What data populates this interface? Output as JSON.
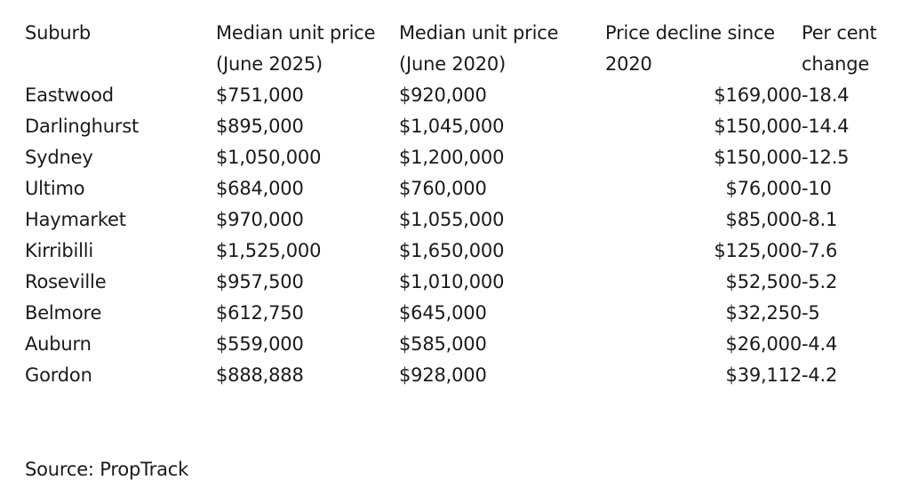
{
  "table": {
    "headers": {
      "suburb": "Suburb",
      "median_2025": "Median unit price (June 2025)",
      "median_2020": "Median unit price (June 2020)",
      "decline": "Price decline since 2020",
      "pct_change": "Per cent change"
    },
    "rows": [
      {
        "suburb": "Eastwood",
        "median_2025": "$751,000",
        "median_2020": "$920,000",
        "decline": "$169,000",
        "pct_change": "-18.4"
      },
      {
        "suburb": "Darlinghurst",
        "median_2025": "$895,000",
        "median_2020": "$1,045,000",
        "decline": "$150,000",
        "pct_change": "-14.4"
      },
      {
        "suburb": "Sydney",
        "median_2025": "$1,050,000",
        "median_2020": "$1,200,000",
        "decline": "$150,000",
        "pct_change": "-12.5"
      },
      {
        "suburb": "Ultimo",
        "median_2025": "$684,000",
        "median_2020": "$760,000",
        "decline": "$76,000",
        "pct_change": "-10"
      },
      {
        "suburb": "Haymarket",
        "median_2025": "$970,000",
        "median_2020": "$1,055,000",
        "decline": "$85,000",
        "pct_change": "-8.1"
      },
      {
        "suburb": "Kirribilli",
        "median_2025": "$1,525,000",
        "median_2020": "$1,650,000",
        "decline": "$125,000",
        "pct_change": "-7.6"
      },
      {
        "suburb": "Roseville",
        "median_2025": "$957,500",
        "median_2020": "$1,010,000",
        "decline": "$52,500",
        "pct_change": "-5.2"
      },
      {
        "suburb": "Belmore",
        "median_2025": "$612,750",
        "median_2020": "$645,000",
        "decline": "$32,250",
        "pct_change": "-5"
      },
      {
        "suburb": "Auburn",
        "median_2025": "$559,000",
        "median_2020": "$585,000",
        "decline": "$26,000",
        "pct_change": "-4.4"
      },
      {
        "suburb": "Gordon",
        "median_2025": "$888,888",
        "median_2020": "$928,000",
        "decline": "$39,112",
        "pct_change": "-4.2"
      }
    ]
  },
  "source": "Source: PropTrack"
}
